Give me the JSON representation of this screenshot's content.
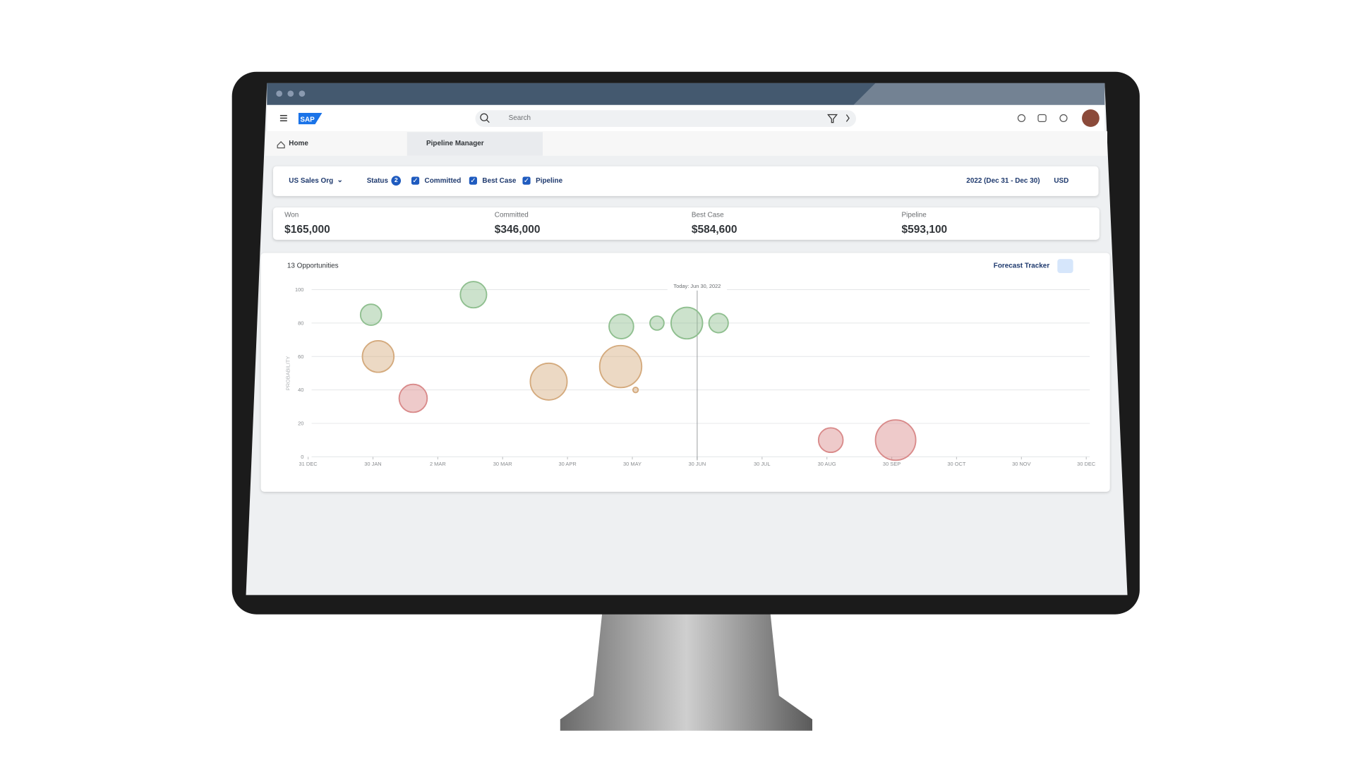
{
  "header": {
    "search_placeholder": "Search"
  },
  "tabs": [
    "Home",
    "Pipeline Manager"
  ],
  "filters": {
    "org": "US Sales Org",
    "status_label": "Status",
    "status_count": 2,
    "statuses": [
      {
        "label": "Committed",
        "checked": true
      },
      {
        "label": "Best Case",
        "checked": true
      },
      {
        "label": "Pipeline",
        "checked": true
      }
    ],
    "period": "2022 (Dec 31 - Dec 30)",
    "currency": "USD"
  },
  "kpis": [
    {
      "label": "Won",
      "value": "$165,000"
    },
    {
      "label": "Committed",
      "value": "$346,000"
    },
    {
      "label": "Best Case",
      "value": "$584,600"
    },
    {
      "label": "Pipeline",
      "value": "$593,100"
    }
  ],
  "chart_data": {
    "type": "bubble",
    "title": "13 Opportunities",
    "toolbar_label": "Forecast Tracker",
    "y_label": "PROBABILITY",
    "today_label": "Today: Jun 30, 2022",
    "today_x": 6,
    "xlim": [
      0,
      12
    ],
    "xticks": [
      {
        "value": 0,
        "label": "31 DEC"
      },
      {
        "value": 1,
        "label": "30 JAN"
      },
      {
        "value": 2,
        "label": "2 MAR"
      },
      {
        "value": 3,
        "label": "30 MAR"
      },
      {
        "value": 4,
        "label": "30 APR"
      },
      {
        "value": 5,
        "label": "30 MAY"
      },
      {
        "value": 6,
        "label": "30 JUN"
      },
      {
        "value": 7,
        "label": "30 JUL"
      },
      {
        "value": 8,
        "label": "30 AUG"
      },
      {
        "value": 9,
        "label": "30 SEP"
      },
      {
        "value": 10,
        "label": "30 OCT"
      },
      {
        "value": 11,
        "label": "30 NOV"
      },
      {
        "value": 12,
        "label": "30 DEC"
      }
    ],
    "ylim": [
      0,
      100
    ],
    "yticks": [
      0,
      20,
      40,
      60,
      80,
      100
    ],
    "grid": true,
    "points": [
      {
        "x": 0.97,
        "y": 85,
        "size": 12,
        "color": "#8fbf8f"
      },
      {
        "x": 2.55,
        "y": 97,
        "size": 15,
        "color": "#8fbf8f"
      },
      {
        "x": 1.08,
        "y": 60,
        "size": 18,
        "color": "#d4aa7d"
      },
      {
        "x": 1.62,
        "y": 35,
        "size": 16,
        "color": "#d98a8a"
      },
      {
        "x": 3.71,
        "y": 45,
        "size": 21,
        "color": "#d4aa7d"
      },
      {
        "x": 4.82,
        "y": 54,
        "size": 24,
        "color": "#d4aa7d"
      },
      {
        "x": 5.05,
        "y": 40,
        "size": 3,
        "color": "#d4aa7d"
      },
      {
        "x": 4.83,
        "y": 78,
        "size": 14,
        "color": "#8fbf8f"
      },
      {
        "x": 5.38,
        "y": 80,
        "size": 8,
        "color": "#8fbf8f"
      },
      {
        "x": 5.84,
        "y": 80,
        "size": 18,
        "color": "#8fbf8f"
      },
      {
        "x": 6.33,
        "y": 80,
        "size": 11,
        "color": "#8fbf8f"
      },
      {
        "x": 8.06,
        "y": 10,
        "size": 14,
        "color": "#d98a8a"
      },
      {
        "x": 9.06,
        "y": 10,
        "size": 23,
        "color": "#d98a8a"
      }
    ]
  }
}
